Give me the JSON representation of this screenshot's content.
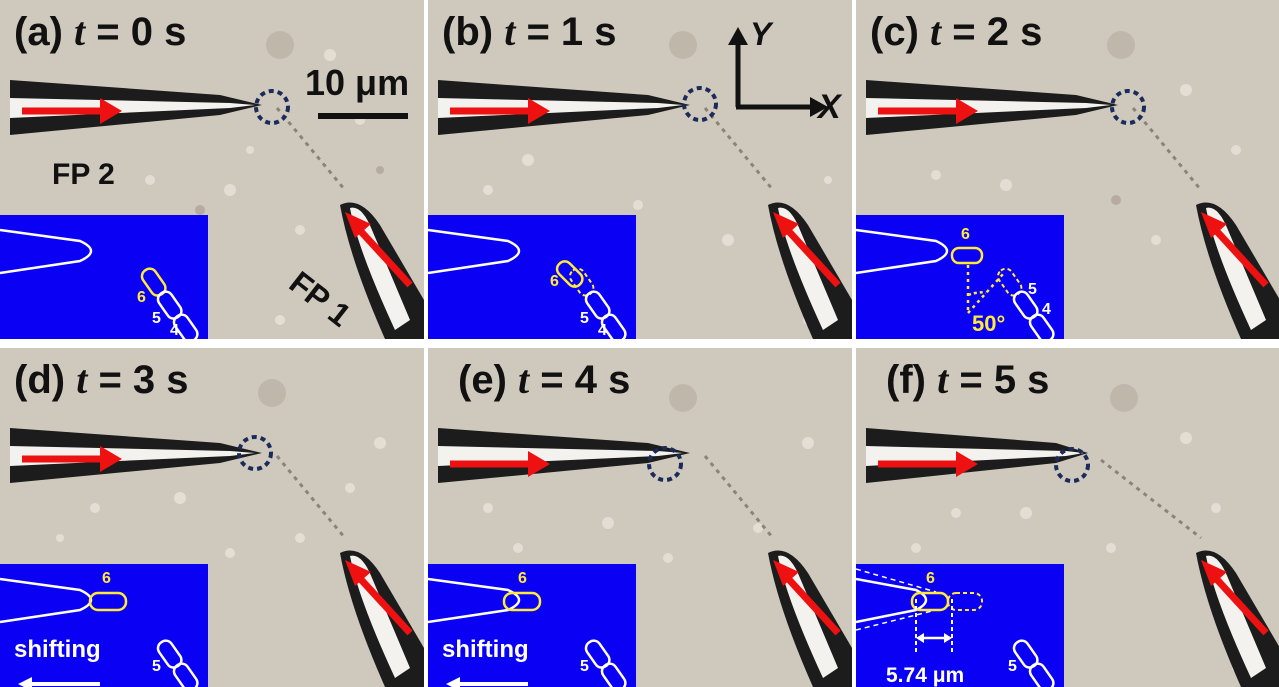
{
  "panels": {
    "a": {
      "letter": "(a)",
      "t": "t",
      "eq": " = ",
      "val": "0 s"
    },
    "b": {
      "letter": "(b)",
      "t": "t",
      "eq": " = ",
      "val": "1 s"
    },
    "c": {
      "letter": "(c)",
      "t": "t",
      "eq": " = ",
      "val": "2 s"
    },
    "d": {
      "letter": "(d)",
      "t": "t",
      "eq": " = ",
      "val": "3 s"
    },
    "e": {
      "letter": "(e)",
      "t": "t",
      "eq": " = ",
      "val": "4 s"
    },
    "f": {
      "letter": "(f)",
      "t": "t",
      "eq": " = ",
      "val": "5 s"
    }
  },
  "labels": {
    "scale_bar": "10 μm",
    "fp2": "FP 2",
    "fp1": "FP 1",
    "axis_y": "Y",
    "axis_x": "X",
    "shifting": "shifting",
    "angle": "50°",
    "distance": "5.74 μm",
    "cell4": "4",
    "cell5": "5",
    "cell6": "6"
  },
  "colors": {
    "arrow": "#ee1111",
    "inset": "#0a00f4",
    "highlight": "#ffea3a",
    "circle": "#1a2a5a"
  }
}
